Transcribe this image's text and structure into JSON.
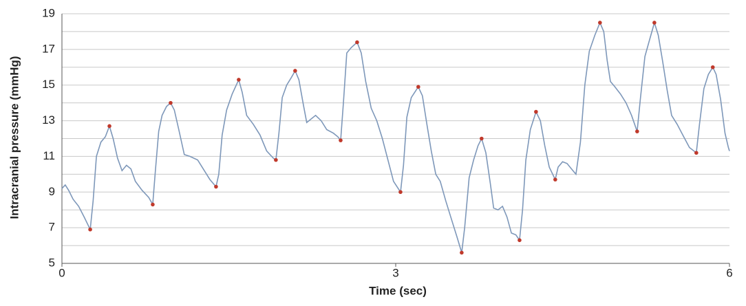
{
  "chart_data": {
    "type": "line",
    "xlabel": "Time (sec)",
    "ylabel": "Intracranial pressure (mmHg)",
    "xlim": [
      0,
      6
    ],
    "xticks": [
      0,
      3,
      6
    ],
    "ylim": [
      5,
      19
    ],
    "yticks": [
      5,
      7,
      9,
      11,
      13,
      15,
      17,
      19
    ],
    "y_minor_grid": [
      6,
      8,
      10,
      12,
      14,
      16,
      18
    ],
    "grid": true,
    "color": "#7d97b9",
    "marker_color": "#c0392b",
    "x": [
      0,
      0.03,
      0.06,
      0.1,
      0.15,
      0.2,
      0.254,
      0.28,
      0.31,
      0.35,
      0.39,
      0.427,
      0.46,
      0.5,
      0.54,
      0.58,
      0.62,
      0.66,
      0.72,
      0.78,
      0.816,
      0.84,
      0.87,
      0.9,
      0.94,
      0.977,
      1.01,
      1.05,
      1.1,
      1.15,
      1.22,
      1.27,
      1.33,
      1.385,
      1.41,
      1.44,
      1.48,
      1.53,
      1.589,
      1.62,
      1.66,
      1.72,
      1.78,
      1.84,
      1.9,
      1.923,
      1.95,
      1.98,
      2.02,
      2.06,
      2.096,
      2.13,
      2.17,
      2.2,
      2.24,
      2.28,
      2.33,
      2.38,
      2.44,
      2.48,
      2.505,
      2.53,
      2.56,
      2.6,
      2.653,
      2.69,
      2.73,
      2.78,
      2.83,
      2.88,
      2.93,
      2.98,
      3.043,
      3.07,
      3.1,
      3.14,
      3.203,
      3.24,
      3.28,
      3.32,
      3.36,
      3.4,
      3.45,
      3.5,
      3.55,
      3.593,
      3.62,
      3.66,
      3.7,
      3.74,
      3.772,
      3.81,
      3.85,
      3.88,
      3.92,
      3.96,
      4.0,
      4.04,
      4.08,
      4.113,
      4.14,
      4.17,
      4.21,
      4.261,
      4.3,
      4.34,
      4.38,
      4.434,
      4.46,
      4.5,
      4.54,
      4.58,
      4.62,
      4.66,
      4.7,
      4.74,
      4.79,
      4.836,
      4.87,
      4.9,
      4.93,
      4.97,
      5.02,
      5.07,
      5.12,
      5.17,
      5.2,
      5.24,
      5.28,
      5.325,
      5.36,
      5.4,
      5.44,
      5.48,
      5.53,
      5.58,
      5.64,
      5.702,
      5.73,
      5.77,
      5.81,
      5.85,
      5.88,
      5.92,
      5.96,
      5.99,
      6.0
    ],
    "values": [
      9.2,
      9.4,
      9.1,
      8.6,
      8.2,
      7.6,
      6.9,
      8.5,
      11.0,
      11.8,
      12.1,
      12.7,
      12.0,
      10.9,
      10.2,
      10.5,
      10.3,
      9.6,
      9.1,
      8.7,
      8.3,
      10.2,
      12.4,
      13.3,
      13.8,
      14.0,
      13.6,
      12.5,
      11.1,
      11.0,
      10.8,
      10.3,
      9.7,
      9.3,
      10.0,
      12.2,
      13.6,
      14.5,
      15.3,
      14.6,
      13.3,
      12.8,
      12.2,
      11.3,
      10.9,
      10.8,
      12.3,
      14.3,
      15.0,
      15.4,
      15.8,
      15.3,
      13.9,
      12.9,
      13.1,
      13.3,
      13.0,
      12.5,
      12.3,
      12.1,
      11.9,
      14.0,
      16.8,
      17.1,
      17.4,
      16.8,
      15.2,
      13.7,
      13.0,
      12.0,
      10.8,
      9.6,
      9.0,
      10.5,
      13.2,
      14.3,
      14.9,
      14.4,
      12.8,
      11.3,
      10.0,
      9.6,
      8.5,
      7.5,
      6.5,
      5.6,
      7.0,
      9.8,
      10.8,
      11.6,
      12.0,
      11.2,
      9.5,
      8.1,
      8.0,
      8.2,
      7.6,
      6.7,
      6.6,
      6.3,
      8.0,
      10.8,
      12.5,
      13.5,
      13.0,
      11.6,
      10.4,
      9.7,
      10.4,
      10.7,
      10.6,
      10.3,
      10.0,
      11.8,
      15.0,
      16.9,
      17.8,
      18.5,
      18.0,
      16.4,
      15.2,
      14.9,
      14.5,
      14.0,
      13.3,
      12.4,
      14.3,
      16.6,
      17.5,
      18.5,
      17.8,
      16.3,
      14.7,
      13.3,
      12.8,
      12.2,
      11.5,
      11.2,
      12.8,
      14.8,
      15.6,
      16.0,
      15.6,
      14.2,
      12.3,
      11.5,
      11.3
    ],
    "extrema": {
      "x": [
        0.254,
        0.427,
        0.816,
        0.977,
        1.385,
        1.589,
        1.923,
        2.096,
        2.505,
        2.653,
        3.043,
        3.203,
        3.593,
        3.772,
        4.113,
        4.261,
        4.434,
        4.836,
        5.17,
        5.325,
        5.702,
        5.85
      ],
      "values": [
        6.9,
        12.7,
        8.3,
        14.0,
        9.3,
        15.3,
        10.8,
        15.8,
        11.9,
        17.4,
        9.0,
        14.9,
        5.6,
        12.0,
        6.3,
        13.5,
        9.7,
        18.5,
        12.4,
        18.5,
        11.2,
        16.0
      ]
    }
  }
}
